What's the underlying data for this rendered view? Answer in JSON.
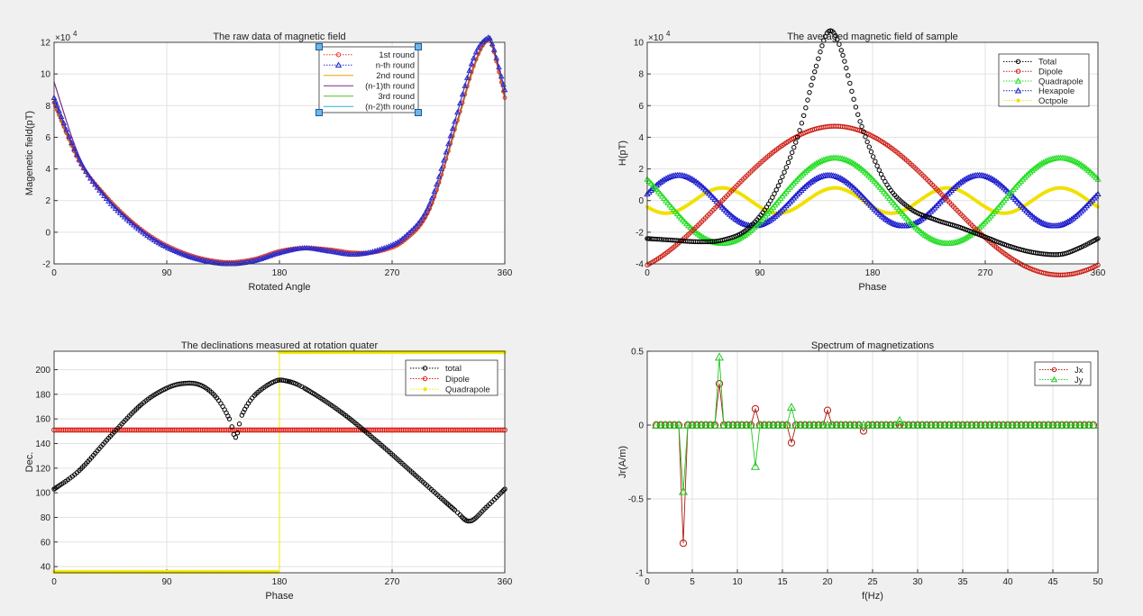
{
  "chart_data": [
    {
      "type": "line",
      "title": "The raw data of magnetic field",
      "xlabel": "Rotated Angle",
      "ylabel": "Magenetic field(pT)",
      "y_exponent": "×10",
      "y_exponent_power": "4",
      "xlim": [
        0,
        360
      ],
      "ylim": [
        -2,
        12
      ],
      "xticks": [
        "0",
        "90",
        "180",
        "270",
        "360"
      ],
      "yticks": [
        "-2",
        "0",
        "2",
        "4",
        "6",
        "8",
        "10",
        "12"
      ],
      "x": [
        0,
        20,
        40,
        60,
        80,
        100,
        120,
        140,
        160,
        180,
        200,
        220,
        240,
        260,
        280,
        300,
        320,
        335,
        345,
        350,
        360
      ],
      "series": [
        {
          "name": "1st round",
          "color": "#e03c2c",
          "marker": "o",
          "values": [
            8.2,
            4.5,
            2.4,
            0.8,
            -0.4,
            -1.2,
            -1.7,
            -1.9,
            -1.7,
            -1.2,
            -1.0,
            -1.1,
            -1.3,
            -1.2,
            -0.5,
            1.5,
            6.5,
            10.5,
            12.1,
            11.8,
            8.5
          ]
        },
        {
          "name": "n-th round",
          "color": "#2a2acc",
          "marker": "^",
          "values": [
            8.5,
            4.6,
            2.3,
            0.7,
            -0.5,
            -1.3,
            -1.8,
            -2.0,
            -1.8,
            -1.3,
            -1.0,
            -1.2,
            -1.4,
            -1.1,
            -0.3,
            1.8,
            7.0,
            11.0,
            12.2,
            11.9,
            9.0
          ]
        },
        {
          "name": "2nd round",
          "color": "#e8a300",
          "marker": "",
          "values": [
            8.0,
            4.4,
            2.5,
            0.9,
            -0.4,
            -1.2,
            -1.7,
            -1.9,
            -1.7,
            -1.2,
            -1.0,
            -1.1,
            -1.3,
            -1.2,
            -0.6,
            1.3,
            6.3,
            10.3,
            12.0,
            11.7,
            8.4
          ]
        },
        {
          "name": "(n-1)th round",
          "color": "#7a2a8a",
          "marker": "",
          "values": [
            9.5,
            4.8,
            2.4,
            0.8,
            -0.4,
            -1.2,
            -1.7,
            -1.9,
            -1.7,
            -1.2,
            -1.0,
            -1.1,
            -1.3,
            -1.2,
            -0.5,
            1.4,
            6.4,
            10.4,
            12.0,
            11.8,
            8.6
          ]
        },
        {
          "name": "3rd round",
          "color": "#5ab82c",
          "marker": "",
          "values": [
            8.1,
            4.5,
            2.4,
            0.8,
            -0.4,
            -1.2,
            -1.7,
            -1.9,
            -1.7,
            -1.2,
            -1.0,
            -1.1,
            -1.3,
            -1.2,
            -0.5,
            1.5,
            6.4,
            10.4,
            12.0,
            11.8,
            8.5
          ]
        },
        {
          "name": "(n-2)th round",
          "color": "#2ab0d8",
          "marker": "",
          "values": [
            8.3,
            4.5,
            2.4,
            0.8,
            -0.4,
            -1.2,
            -1.7,
            -1.9,
            -1.7,
            -1.2,
            -1.0,
            -1.1,
            -1.3,
            -1.2,
            -0.5,
            1.5,
            6.5,
            10.5,
            12.1,
            11.8,
            8.6
          ]
        }
      ]
    },
    {
      "type": "line",
      "title": "The averaged magnetic field of sample",
      "xlabel": "Phase",
      "ylabel": "H(pT)",
      "y_exponent": "×10",
      "y_exponent_power": "4",
      "xlim": [
        0,
        360
      ],
      "ylim": [
        -4,
        10
      ],
      "xticks": [
        "0",
        "90",
        "180",
        "270",
        "360"
      ],
      "yticks": [
        "-4",
        "-2",
        "0",
        "2",
        "4",
        "6",
        "8",
        "10"
      ],
      "series": [
        {
          "name": "Total",
          "color": "#000000",
          "marker": "o",
          "x": [
            0,
            20,
            40,
            60,
            80,
            100,
            120,
            135,
            145,
            155,
            170,
            190,
            210,
            230,
            250,
            270,
            290,
            310,
            330,
            345,
            360
          ],
          "values": [
            -2.4,
            -2.5,
            -2.6,
            -2.5,
            -1.8,
            0.2,
            4.0,
            8.5,
            10.7,
            9.5,
            5.0,
            1.2,
            -0.5,
            -1.2,
            -1.7,
            -2.3,
            -2.9,
            -3.3,
            -3.4,
            -3.0,
            -2.4
          ]
        },
        {
          "name": "Dipole",
          "color": "#cc1a10",
          "marker": "o",
          "amplitude": 4.7,
          "harmonic": 1,
          "peak_phase": 150,
          "offset": 0
        },
        {
          "name": "Quadrapole",
          "color": "#22dd22",
          "marker": "^",
          "amplitude": 2.7,
          "harmonic": 2,
          "peak_phase": 150,
          "offset": 0
        },
        {
          "name": "Hexapole",
          "color": "#1a1acc",
          "marker": "^",
          "amplitude": 1.6,
          "harmonic": 3,
          "peak_phase": 145,
          "offset": 0
        },
        {
          "name": "Octpole",
          "color": "#f0e000",
          "marker": "*",
          "amplitude": 0.8,
          "harmonic": 4,
          "peak_phase": 150,
          "offset": 0
        }
      ]
    },
    {
      "type": "line",
      "title": "The declinations measured at rotation quater",
      "xlabel": "Phase",
      "ylabel": "Dec.",
      "xlim": [
        0,
        360
      ],
      "ylim": [
        35,
        215
      ],
      "xticks": [
        "0",
        "90",
        "180",
        "270",
        "360"
      ],
      "yticks": [
        "40",
        "60",
        "80",
        "100",
        "120",
        "140",
        "160",
        "180",
        "200"
      ],
      "series": [
        {
          "name": "total",
          "color": "#000000",
          "marker": "o",
          "x": [
            0,
            20,
            45,
            70,
            90,
            105,
            118,
            130,
            140,
            145,
            150,
            160,
            175,
            185,
            200,
            230,
            260,
            290,
            320,
            332,
            345,
            360
          ],
          "values": [
            103,
            118,
            146,
            172,
            185,
            189,
            187,
            177,
            160,
            145,
            163,
            179,
            190,
            191,
            185,
            165,
            140,
            113,
            86,
            77,
            88,
            103
          ]
        },
        {
          "name": "Dipole",
          "color": "#dd1a10",
          "marker": "o",
          "x": [
            0,
            360
          ],
          "values": [
            151,
            151
          ]
        },
        {
          "name": "Quadrapole",
          "color": "#f0e800",
          "marker": "*",
          "x": [
            0,
            180,
            180,
            360
          ],
          "values": [
            35,
            35,
            215,
            215
          ]
        }
      ]
    },
    {
      "type": "line",
      "title": "Spectrum of magnetizations",
      "xlabel": "f(Hz)",
      "ylabel": "Jr(A/m)",
      "xlim": [
        0,
        50
      ],
      "ylim": [
        -1,
        0.5
      ],
      "xticks": [
        "0",
        "5",
        "10",
        "15",
        "20",
        "25",
        "30",
        "35",
        "40",
        "45",
        "50"
      ],
      "yticks": [
        "-1",
        "-0.5",
        "0",
        "0.5"
      ],
      "x_step": 0.5,
      "x_start": 1,
      "x_end": 49.5,
      "series": [
        {
          "name": "Jx",
          "color": "#b01a10",
          "marker": "o",
          "nonzero": {
            "4": -0.8,
            "8": 0.28,
            "12": 0.11,
            "16": -0.12,
            "20": 0.1,
            "24": -0.04
          }
        },
        {
          "name": "Jy",
          "color": "#22c822",
          "marker": "^",
          "nonzero": {
            "4": -0.45,
            "8": 0.46,
            "12": -0.28,
            "16": 0.12,
            "28": 0.03
          }
        }
      ]
    }
  ]
}
